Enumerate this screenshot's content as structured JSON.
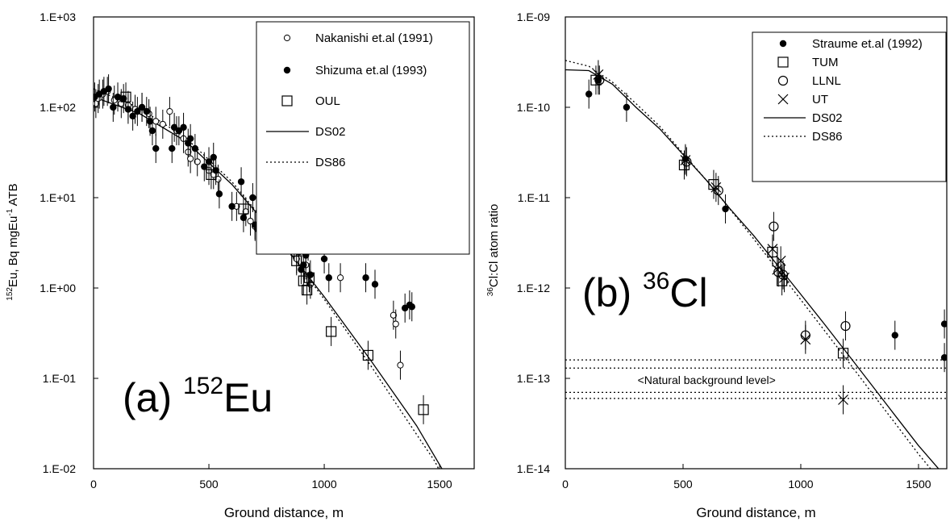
{
  "chart_data": [
    {
      "type": "scatter",
      "panel_label": "(a)",
      "element_mass": "152",
      "element_symbol": "Eu",
      "xlabel": "Ground distance, m",
      "ylabel_parts": [
        "152",
        "Eu,  Bq mgEu",
        "-1",
        " ATB"
      ],
      "xlim": [
        0,
        1650
      ],
      "ylim": [
        0.01,
        1000
      ],
      "yscale": "log",
      "x_ticks": [
        0,
        500,
        1000,
        1500
      ],
      "y_ticks": [
        {
          "value": 1000,
          "label": "1.E+03"
        },
        {
          "value": 100,
          "label": "1.E+02"
        },
        {
          "value": 10,
          "label": "1.E+01"
        },
        {
          "value": 1,
          "label": "1.E+00"
        },
        {
          "value": 0.1,
          "label": "1.E-01"
        },
        {
          "value": 0.01,
          "label": "1.E-02"
        }
      ],
      "legend_placement": "top-right",
      "series": [
        {
          "name": "Nakanishi et.al (1991)",
          "marker": "open-circle-small",
          "points": [
            [
              10,
              110
            ],
            [
              20,
              125
            ],
            [
              40,
              140
            ],
            [
              60,
              150
            ],
            [
              90,
              120
            ],
            [
              120,
              110
            ],
            [
              150,
              105
            ],
            [
              180,
              95
            ],
            [
              210,
              100
            ],
            [
              240,
              85
            ],
            [
              270,
              70
            ],
            [
              300,
              65
            ],
            [
              330,
              90
            ],
            [
              360,
              55
            ],
            [
              390,
              45
            ],
            [
              410,
              32
            ],
            [
              420,
              27
            ],
            [
              450,
              25
            ],
            [
              500,
              20
            ],
            [
              520,
              18
            ],
            [
              540,
              16
            ],
            [
              620,
              8
            ],
            [
              660,
              7
            ],
            [
              680,
              5.5
            ],
            [
              700,
              4.8
            ],
            [
              720,
              4.2
            ],
            [
              880,
              2.1
            ],
            [
              900,
              4.2
            ],
            [
              920,
              1.8
            ],
            [
              940,
              1.1
            ],
            [
              1070,
              1.3
            ],
            [
              1300,
              0.5
            ],
            [
              1310,
              0.4
            ],
            [
              1330,
              0.14
            ]
          ]
        },
        {
          "name": "Shizuma et.al (1993)",
          "marker": "filled-circle",
          "points": [
            [
              5,
              130
            ],
            [
              25,
              140
            ],
            [
              45,
              150
            ],
            [
              65,
              160
            ],
            [
              85,
              100
            ],
            [
              105,
              130
            ],
            [
              130,
              125
            ],
            [
              150,
              95
            ],
            [
              170,
              80
            ],
            [
              190,
              90
            ],
            [
              210,
              100
            ],
            [
              230,
              90
            ],
            [
              245,
              70
            ],
            [
              255,
              55
            ],
            [
              270,
              35
            ],
            [
              340,
              35
            ],
            [
              350,
              60
            ],
            [
              370,
              55
            ],
            [
              390,
              60
            ],
            [
              410,
              40
            ],
            [
              420,
              45
            ],
            [
              440,
              35
            ],
            [
              480,
              22
            ],
            [
              500,
              25
            ],
            [
              520,
              28
            ],
            [
              530,
              20
            ],
            [
              545,
              11
            ],
            [
              600,
              8
            ],
            [
              640,
              15
            ],
            [
              650,
              6
            ],
            [
              690,
              10
            ],
            [
              700,
              5
            ],
            [
              710,
              4.5
            ],
            [
              720,
              5.5
            ],
            [
              870,
              2.9
            ],
            [
              890,
              2.5
            ],
            [
              900,
              1.6
            ],
            [
              910,
              1.8
            ],
            [
              920,
              2.3
            ],
            [
              930,
              2.9
            ],
            [
              940,
              1.4
            ],
            [
              1000,
              2.1
            ],
            [
              1020,
              1.3
            ],
            [
              1180,
              1.3
            ],
            [
              1220,
              1.1
            ],
            [
              1350,
              0.6
            ],
            [
              1370,
              0.65
            ],
            [
              1380,
              0.62
            ]
          ]
        },
        {
          "name": "OUL",
          "marker": "open-square",
          "points": [
            [
              140,
              130
            ],
            [
              510,
              18
            ],
            [
              650,
              7.5
            ],
            [
              880,
              2
            ],
            [
              910,
              1.2
            ],
            [
              925,
              0.95
            ],
            [
              935,
              1.3
            ],
            [
              1030,
              0.33
            ],
            [
              1190,
              0.18
            ],
            [
              1430,
              0.045
            ]
          ]
        },
        {
          "name": "DS02",
          "line": "solid",
          "points": [
            [
              0,
              130
            ],
            [
              200,
              85
            ],
            [
              400,
              42
            ],
            [
              600,
              14
            ],
            [
              800,
              3.6
            ],
            [
              1000,
              0.8
            ],
            [
              1200,
              0.16
            ],
            [
              1400,
              0.03
            ],
            [
              1510,
              0.01
            ]
          ]
        },
        {
          "name": "DS86",
          "line": "dotted",
          "points": [
            [
              0,
              160
            ],
            [
              200,
              98
            ],
            [
              400,
              46
            ],
            [
              600,
              15
            ],
            [
              800,
              3.6
            ],
            [
              1000,
              0.75
            ],
            [
              1200,
              0.14
            ],
            [
              1400,
              0.024
            ],
            [
              1480,
              0.012
            ],
            [
              1495,
              0.01
            ]
          ]
        }
      ]
    },
    {
      "type": "scatter",
      "panel_label": "(b)",
      "element_mass": "36",
      "element_symbol": "Cl",
      "xlabel": "Ground distance, m",
      "ylabel_parts": [
        "36",
        "Cl:Cl atom ratio"
      ],
      "xlim": [
        0,
        1620
      ],
      "ylim": [
        1e-14,
        1e-09
      ],
      "yscale": "log",
      "x_ticks": [
        0,
        500,
        1000,
        1500
      ],
      "y_ticks": [
        {
          "value": 1e-09,
          "label": "1.E-09"
        },
        {
          "value": 1e-10,
          "label": "1.E-10"
        },
        {
          "value": 1e-11,
          "label": "1.E-11"
        },
        {
          "value": 1e-12,
          "label": "1.E-12"
        },
        {
          "value": 1e-13,
          "label": "1.E-13"
        },
        {
          "value": 1e-14,
          "label": "1.E-14"
        }
      ],
      "legend_placement": "top-right",
      "annotation": "<Natural background level>",
      "background_lines": [
        1.6e-13,
        1.3e-13,
        7e-14,
        6e-14
      ],
      "series": [
        {
          "name": "Straume et.al (1992)",
          "marker": "filled-circle",
          "points": [
            [
              100,
              1.4e-10
            ],
            [
              140,
              2e-10
            ],
            [
              260,
              1e-10
            ],
            [
              510,
              2.7e-11
            ],
            [
              680,
              7.5e-12
            ],
            [
              1400,
              3e-13
            ],
            [
              1610,
              4e-13
            ],
            [
              1610,
              1.7e-13
            ]
          ]
        },
        {
          "name": "TUM",
          "marker": "open-square",
          "points": [
            [
              130,
              2e-10
            ],
            [
              505,
              2.3e-11
            ],
            [
              630,
              1.4e-11
            ],
            [
              880,
              2.5e-12
            ],
            [
              920,
              1.2e-12
            ],
            [
              1180,
              1.9e-13
            ]
          ]
        },
        {
          "name": "LLNL",
          "marker": "open-circle",
          "points": [
            [
              145,
              2e-10
            ],
            [
              515,
              2.5e-11
            ],
            [
              650,
              1.2e-11
            ],
            [
              885,
              4.8e-12
            ],
            [
              905,
              1.5e-12
            ],
            [
              925,
              1.4e-12
            ],
            [
              1020,
              3e-13
            ],
            [
              1190,
              3.8e-13
            ]
          ]
        },
        {
          "name": "UT",
          "marker": "x",
          "points": [
            [
              140,
              2.3e-10
            ],
            [
              510,
              2.6e-11
            ],
            [
              640,
              1.3e-11
            ],
            [
              880,
              2.7e-12
            ],
            [
              900,
              1.6e-12
            ],
            [
              915,
              2e-12
            ],
            [
              930,
              1.3e-12
            ],
            [
              1020,
              2.7e-13
            ],
            [
              1180,
              5.8e-14
            ]
          ]
        },
        {
          "name": "DS02",
          "line": "solid",
          "points": [
            [
              0,
              2.6e-10
            ],
            [
              100,
              2.55e-10
            ],
            [
              200,
              1.8e-10
            ],
            [
              300,
              1e-10
            ],
            [
              400,
              5.8e-11
            ],
            [
              500,
              3e-11
            ],
            [
              600,
              1.55e-11
            ],
            [
              700,
              7.5e-12
            ],
            [
              800,
              3.8e-12
            ],
            [
              900,
              1.8e-12
            ],
            [
              1000,
              8.5e-13
            ],
            [
              1100,
              4e-13
            ],
            [
              1200,
              1.85e-13
            ],
            [
              1300,
              8.5e-14
            ],
            [
              1400,
              3.9e-14
            ],
            [
              1500,
              1.8e-14
            ],
            [
              1600,
              9e-15
            ]
          ]
        },
        {
          "name": "DS86",
          "line": "dotted",
          "points": [
            [
              0,
              3.3e-10
            ],
            [
              100,
              2.85e-10
            ],
            [
              200,
              1.9e-10
            ],
            [
              300,
              1.1e-10
            ],
            [
              400,
              6.2e-11
            ],
            [
              500,
              3.1e-11
            ],
            [
              600,
              1.55e-11
            ],
            [
              700,
              7.4e-12
            ],
            [
              800,
              3.5e-12
            ],
            [
              900,
              1.6e-12
            ],
            [
              1000,
              7.4e-13
            ],
            [
              1100,
              3.4e-13
            ],
            [
              1200,
              1.55e-13
            ],
            [
              1300,
              7e-14
            ],
            [
              1400,
              3.2e-14
            ],
            [
              1500,
              1.45e-14
            ],
            [
              1600,
              7e-15
            ]
          ]
        }
      ]
    }
  ]
}
